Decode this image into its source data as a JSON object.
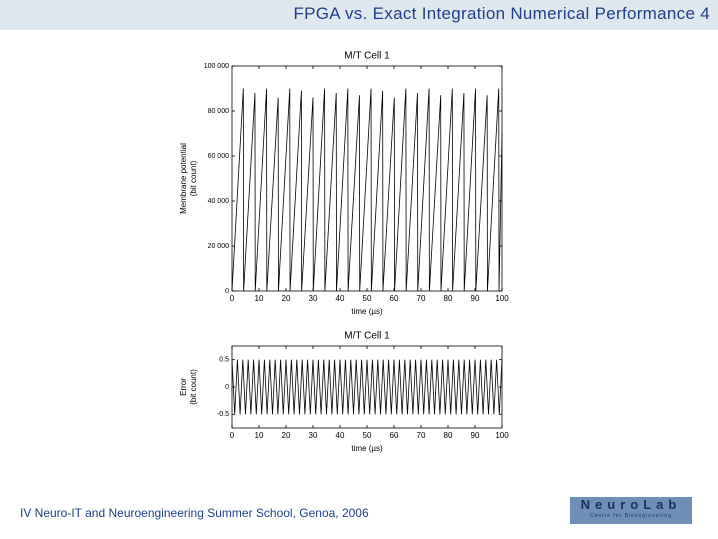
{
  "header": {
    "title": "FPGA vs. Exact Integration Numerical Performance 4"
  },
  "footer": {
    "text": "IV Neuro-IT and Neuroengineering Summer School, Genoa, 2006",
    "logo": {
      "name": "NeuroLab",
      "subtitle": "Centre for Bioengineering"
    }
  },
  "chart_data": [
    {
      "type": "line",
      "title": "M/T Cell 1",
      "xlabel": "time (µs)",
      "ylabel": [
        "Membrane potential",
        "(bit count)"
      ],
      "x": [
        0,
        4.2,
        4.3,
        8.5,
        8.6,
        12.8,
        12.9,
        17.1,
        17.2,
        21.4,
        21.5,
        25.7,
        25.8,
        30,
        30.1,
        34.3,
        34.4,
        38.6,
        38.7,
        42.9,
        43,
        47.2,
        47.3,
        51.5,
        51.6,
        55.8,
        55.9,
        60.1,
        60.2,
        64.4,
        64.5,
        68.7,
        68.8,
        73,
        73.1,
        77.3,
        77.4,
        81.6,
        81.7,
        85.9,
        86,
        90.2,
        90.3,
        94.5,
        94.6,
        98.8,
        98.9,
        100
      ],
      "values": [
        0,
        90000,
        0,
        88000,
        0,
        90000,
        0,
        86000,
        0,
        90000,
        0,
        89000,
        0,
        86000,
        0,
        90000,
        0,
        88000,
        0,
        90000,
        0,
        87000,
        0,
        90000,
        0,
        89000,
        0,
        86000,
        0,
        90000,
        0,
        88000,
        0,
        90000,
        0,
        87000,
        0,
        90000,
        0,
        88000,
        0,
        90000,
        0,
        87000,
        0,
        90000,
        0,
        70000
      ],
      "color": "#000000",
      "xlim": [
        0,
        100
      ],
      "xticks": [
        0,
        10,
        20,
        30,
        40,
        50,
        60,
        70,
        80,
        90,
        100
      ],
      "ylim": [
        0,
        100000
      ],
      "yticks": [
        0,
        {
          "value": 20000,
          "label": "20 000"
        },
        {
          "value": 40000,
          "label": "40 000"
        },
        {
          "value": 60000,
          "label": "60 000"
        },
        {
          "value": 80000,
          "label": "80 000"
        },
        {
          "value": 100000,
          "label": "100 000"
        }
      ]
    },
    {
      "type": "line",
      "title": "M/T Cell 1",
      "xlabel": "time (µs)",
      "ylabel": [
        "Error",
        "(bit count)"
      ],
      "x": [
        0,
        1,
        2,
        3,
        4,
        5,
        6,
        7,
        8,
        9,
        10,
        11,
        12,
        13,
        14,
        15,
        16,
        17,
        18,
        19,
        20,
        21,
        22,
        23,
        24,
        25,
        26,
        27,
        28,
        29,
        30,
        31,
        32,
        33,
        34,
        35,
        36,
        37,
        38,
        39,
        40,
        41,
        42,
        43,
        44,
        45,
        46,
        47,
        48,
        49,
        50,
        51,
        52,
        53,
        54,
        55,
        56,
        57,
        58,
        59,
        60,
        61,
        62,
        63,
        64,
        65,
        66,
        67,
        68,
        69,
        70,
        71,
        72,
        73,
        74,
        75,
        76,
        77,
        78,
        79,
        80,
        81,
        82,
        83,
        84,
        85,
        86,
        87,
        88,
        89,
        90,
        91,
        92,
        93,
        94,
        95,
        96,
        97,
        98,
        99,
        100
      ],
      "values": [
        0.5,
        -0.5,
        0.5,
        -0.5,
        0.5,
        -0.5,
        0.5,
        -0.5,
        0.5,
        -0.5,
        0.5,
        -0.5,
        0.5,
        -0.5,
        0.5,
        -0.5,
        0.5,
        -0.5,
        0.5,
        -0.5,
        0.5,
        -0.5,
        0.5,
        -0.5,
        0.5,
        -0.5,
        0.5,
        -0.5,
        0.5,
        -0.5,
        0.5,
        -0.5,
        0.5,
        -0.5,
        0.5,
        -0.5,
        0.5,
        -0.5,
        0.5,
        -0.5,
        0.5,
        -0.5,
        0.5,
        -0.5,
        0.5,
        -0.5,
        0.5,
        -0.5,
        0.5,
        -0.5,
        0.5,
        -0.5,
        0.5,
        -0.5,
        0.5,
        -0.5,
        0.5,
        -0.5,
        0.5,
        -0.5,
        0.5,
        -0.5,
        0.5,
        -0.5,
        0.5,
        -0.5,
        0.5,
        -0.5,
        0.5,
        -0.5,
        0.5,
        -0.5,
        0.5,
        -0.5,
        0.5,
        -0.5,
        0.5,
        -0.5,
        0.5,
        -0.5,
        0.5,
        -0.5,
        0.5,
        -0.5,
        0.5,
        -0.5,
        0.5,
        -0.5,
        0.5,
        -0.5,
        0.5,
        -0.5,
        0.5,
        -0.5,
        0.5,
        -0.5,
        0.5,
        -0.5,
        0.5,
        -0.5,
        0.5
      ],
      "color": "#000000",
      "xlim": [
        0,
        100
      ],
      "xticks": [
        0,
        10,
        20,
        30,
        40,
        50,
        60,
        70,
        80,
        90,
        100
      ],
      "ylim": [
        -0.75,
        0.75
      ],
      "yticks": [
        -0.5,
        0,
        0.5
      ]
    }
  ]
}
